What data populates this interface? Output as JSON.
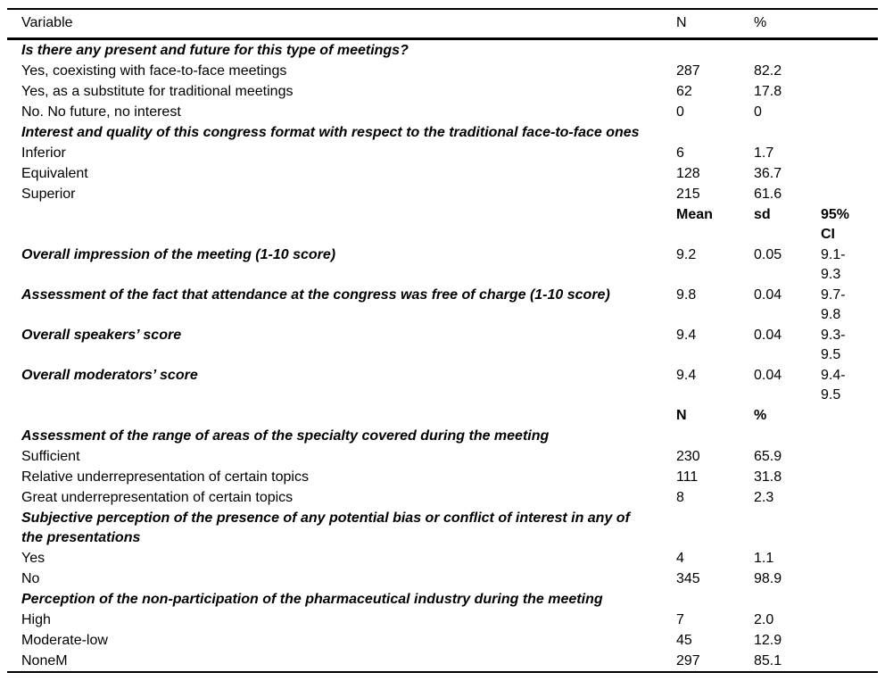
{
  "colors": {
    "background": "#ffffff",
    "text": "#000000",
    "rule": "#000000"
  },
  "document": {
    "header": {
      "variable": "Variable",
      "n": "N",
      "pct": "%"
    },
    "rows": [
      {
        "type": "section",
        "label": "Is there any present and future for this type of meetings?",
        "c1": "",
        "c2": "",
        "c3": ""
      },
      {
        "type": "data",
        "label": "Yes, coexisting with face-to-face meetings",
        "c1": "287",
        "c2": "82.2",
        "c3": ""
      },
      {
        "type": "data",
        "label": "Yes, as a substitute for traditional meetings",
        "c1": "62",
        "c2": "17.8",
        "c3": ""
      },
      {
        "type": "data",
        "label": "No. No future, no interest",
        "c1": "0",
        "c2": "0",
        "c3": ""
      },
      {
        "type": "section",
        "label": "Interest and quality of this congress format with respect to the traditional face-to-face ones",
        "c1": "",
        "c2": "",
        "c3": ""
      },
      {
        "type": "data",
        "label": "Inferior",
        "c1": "6",
        "c2": "1.7",
        "c3": ""
      },
      {
        "type": "data",
        "label": "Equivalent",
        "c1": "128",
        "c2": "36.7",
        "c3": ""
      },
      {
        "type": "data",
        "label": "Superior",
        "c1": "215",
        "c2": "61.6",
        "c3": ""
      },
      {
        "type": "subheader",
        "label": "",
        "c1": "Mean",
        "c2": "sd",
        "c3": "95% CI"
      },
      {
        "type": "score",
        "label": "Overall impression of the meeting (1-10 score)",
        "c1": "9.2",
        "c2": "0.05",
        "c3": "9.1-9.3"
      },
      {
        "type": "score",
        "label": "Assessment of the fact that attendance at the congress was free of charge (1-10 score)",
        "c1": "9.8",
        "c2": "0.04",
        "c3": "9.7-9.8"
      },
      {
        "type": "score",
        "label": "Overall speakers’ score",
        "c1": "9.4",
        "c2": "0.04",
        "c3": "9.3-9.5"
      },
      {
        "type": "score",
        "label": "Overall moderators’ score",
        "c1": "9.4",
        "c2": "0.04",
        "c3": "9.4-9.5"
      },
      {
        "type": "subheader",
        "label": "",
        "c1": "N",
        "c2": "%",
        "c3": ""
      },
      {
        "type": "section",
        "label": "Assessment of the range of areas of the specialty covered during the meeting",
        "c1": "",
        "c2": "",
        "c3": ""
      },
      {
        "type": "data",
        "label": "Sufficient",
        "c1": "230",
        "c2": "65.9",
        "c3": ""
      },
      {
        "type": "data",
        "label": "Relative underrepresentation of certain topics",
        "c1": "111",
        "c2": "31.8",
        "c3": ""
      },
      {
        "type": "data",
        "label": "Great underrepresentation of certain topics",
        "c1": "8",
        "c2": "2.3",
        "c3": ""
      },
      {
        "type": "section",
        "label": "Subjective perception of the presence of any potential bias or conflict of interest in any of the presentations",
        "c1": "",
        "c2": "",
        "c3": ""
      },
      {
        "type": "data",
        "label": "Yes",
        "c1": "4",
        "c2": "1.1",
        "c3": ""
      },
      {
        "type": "data",
        "label": "No",
        "c1": "345",
        "c2": "98.9",
        "c3": ""
      },
      {
        "type": "section",
        "label": "Perception of the non-participation of the pharmaceutical industry during the meeting",
        "c1": "",
        "c2": "",
        "c3": ""
      },
      {
        "type": "data",
        "label": "High",
        "c1": "7",
        "c2": "2.0",
        "c3": ""
      },
      {
        "type": "data",
        "label": "Moderate-low",
        "c1": "45",
        "c2": "12.9",
        "c3": ""
      },
      {
        "type": "data",
        "label": "NoneM",
        "c1": "297",
        "c2": "85.1",
        "c3": ""
      }
    ]
  }
}
